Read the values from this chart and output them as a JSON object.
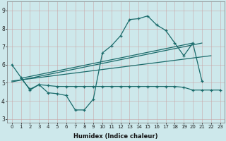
{
  "xlabel": "Humidex (Indice chaleur)",
  "background_color": "#cde8eb",
  "grid_color": "#b8d8db",
  "line_color": "#1a6b6b",
  "xlim": [
    -0.5,
    23.5
  ],
  "ylim": [
    2.8,
    9.5
  ],
  "yticks": [
    3,
    4,
    5,
    6,
    7,
    8,
    9
  ],
  "xticks": [
    0,
    1,
    2,
    3,
    4,
    5,
    6,
    7,
    8,
    9,
    10,
    11,
    12,
    13,
    14,
    15,
    16,
    17,
    18,
    19,
    20,
    21,
    22,
    23
  ],
  "curve1_x": [
    0,
    1,
    2,
    3,
    4,
    5,
    6,
    7,
    8,
    9,
    10,
    11,
    12,
    13,
    14,
    15,
    16,
    17,
    18,
    19,
    20,
    21
  ],
  "curve1_y": [
    6.0,
    5.3,
    4.6,
    4.9,
    4.45,
    4.4,
    4.3,
    3.5,
    3.5,
    4.1,
    6.65,
    7.05,
    7.6,
    8.5,
    8.55,
    8.7,
    8.2,
    7.9,
    7.2,
    6.5,
    7.2,
    5.1
  ],
  "curve2_x": [
    1,
    2,
    3,
    4,
    5,
    6,
    7,
    8,
    9,
    10,
    11,
    12,
    13,
    14,
    15,
    16,
    17,
    18,
    19,
    20,
    21,
    22,
    23
  ],
  "curve2_y": [
    5.25,
    4.65,
    4.9,
    4.85,
    4.8,
    4.8,
    4.8,
    4.8,
    4.8,
    4.8,
    4.8,
    4.8,
    4.8,
    4.8,
    4.8,
    4.8,
    4.8,
    4.8,
    4.75,
    4.6,
    4.6,
    4.6,
    4.6
  ],
  "line1_x": [
    0,
    21
  ],
  "line1_y": [
    5.05,
    7.2
  ],
  "line2_x": [
    0,
    22
  ],
  "line2_y": [
    5.1,
    6.5
  ],
  "line3_x": [
    1,
    20
  ],
  "line3_y": [
    5.25,
    7.2
  ]
}
